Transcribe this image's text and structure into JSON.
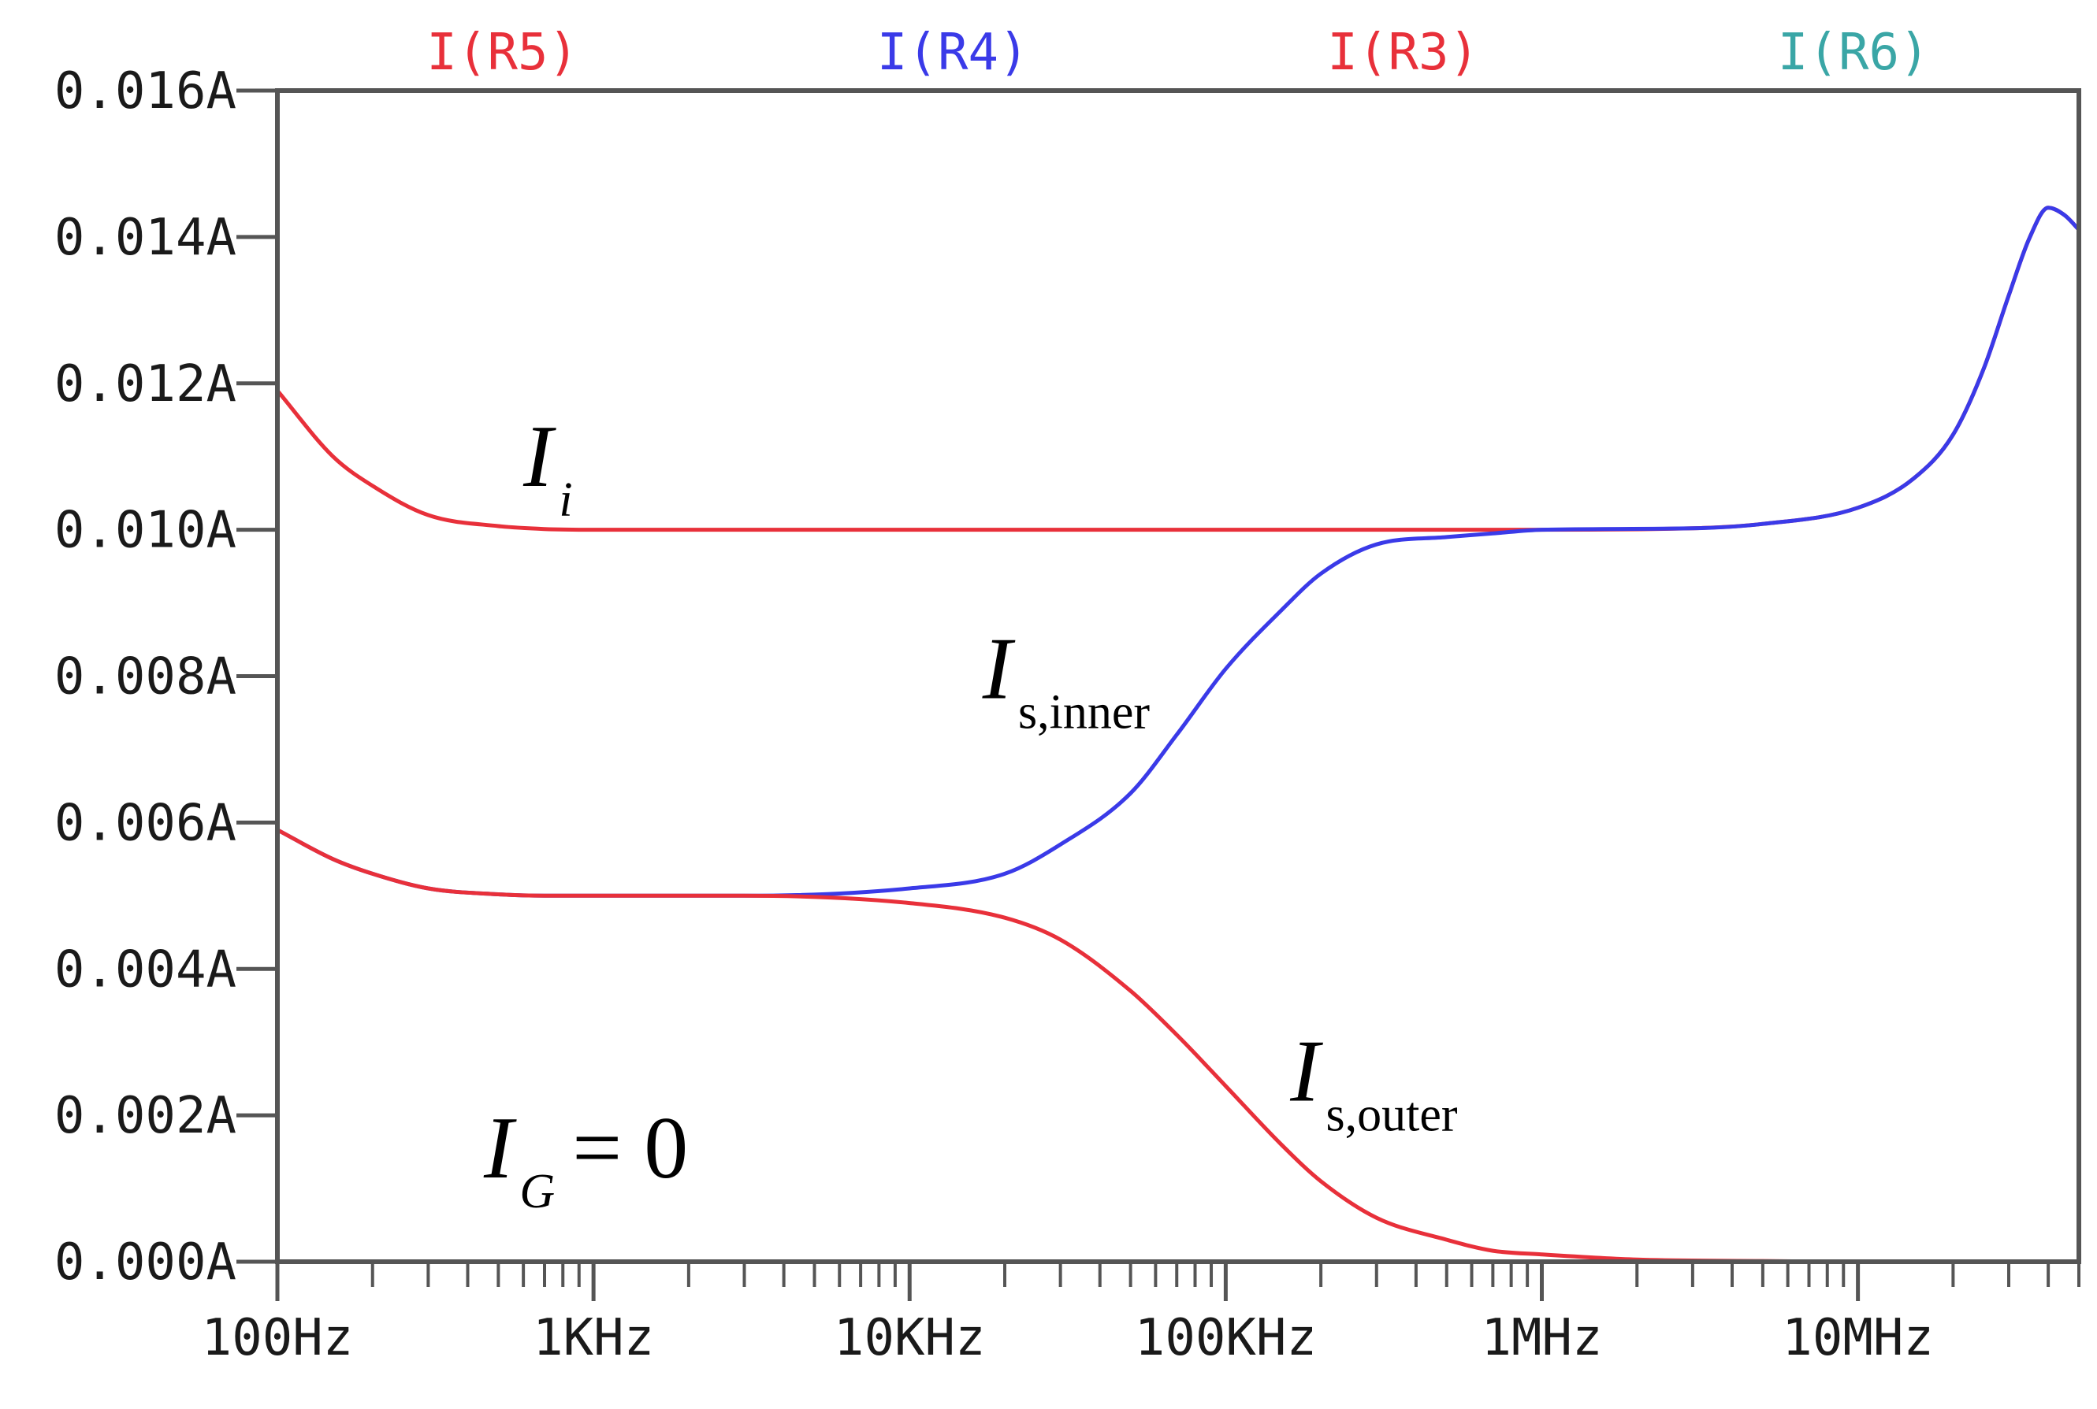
{
  "chart_data": {
    "type": "line",
    "xscale": "log",
    "xlim": [
      100,
      50000000
    ],
    "ylim": [
      0,
      0.016
    ],
    "grid": false,
    "x_ticks": [
      {
        "value": 100,
        "label": "100Hz"
      },
      {
        "value": 1000,
        "label": "1KHz"
      },
      {
        "value": 10000,
        "label": "10KHz"
      },
      {
        "value": 100000,
        "label": "100KHz"
      },
      {
        "value": 1000000,
        "label": "1MHz"
      },
      {
        "value": 10000000,
        "label": "10MHz"
      }
    ],
    "y_ticks": [
      {
        "value": 0.0,
        "label": "0.000A"
      },
      {
        "value": 0.002,
        "label": "0.002A"
      },
      {
        "value": 0.004,
        "label": "0.004A"
      },
      {
        "value": 0.006,
        "label": "0.006A"
      },
      {
        "value": 0.008,
        "label": "0.008A"
      },
      {
        "value": 0.01,
        "label": "0.010A"
      },
      {
        "value": 0.012,
        "label": "0.012A"
      },
      {
        "value": 0.014,
        "label": "0.014A"
      },
      {
        "value": 0.016,
        "label": "0.016A"
      }
    ],
    "legend_position": "top",
    "series": [
      {
        "name": "I(R5)",
        "color": "#e8303a",
        "x": [
          100,
          150,
          200,
          300,
          500,
          700,
          1000,
          3000,
          10000,
          100000,
          1000000,
          3000000,
          5000000,
          10000000,
          15000000,
          20000000,
          25000000,
          30000000,
          35000000,
          40000000,
          45000000,
          50000000
        ],
        "y": [
          0.0119,
          0.011,
          0.0106,
          0.0102,
          0.01005,
          0.01001,
          0.01,
          0.01,
          0.01,
          0.01,
          0.01,
          0.01002,
          0.01008,
          0.0103,
          0.0107,
          0.0113,
          0.0122,
          0.0132,
          0.014,
          0.0144,
          0.0143,
          0.0141
        ]
      },
      {
        "name": "I(R4)",
        "color": "#3a3ae8",
        "x": [
          100,
          150,
          200,
          300,
          500,
          700,
          1000,
          3000,
          10000,
          20000,
          30000,
          50000,
          70000,
          100000,
          150000,
          200000,
          300000,
          500000,
          700000,
          1000000,
          3000000,
          5000000,
          10000000,
          15000000,
          20000000,
          25000000,
          30000000,
          35000000,
          40000000,
          45000000,
          50000000
        ],
        "y": [
          0.0059,
          0.0055,
          0.0053,
          0.0051,
          0.00502,
          0.005,
          0.005,
          0.005,
          0.0051,
          0.0053,
          0.0057,
          0.0064,
          0.0072,
          0.0081,
          0.0089,
          0.0094,
          0.0098,
          0.0099,
          0.00995,
          0.01,
          0.01002,
          0.01008,
          0.0103,
          0.0107,
          0.0113,
          0.0122,
          0.0132,
          0.014,
          0.0144,
          0.0143,
          0.0141
        ]
      },
      {
        "name": "I(R3)",
        "color": "#e8303a",
        "x": [
          100,
          150,
          200,
          300,
          500,
          700,
          1000,
          3000,
          10000,
          20000,
          30000,
          50000,
          70000,
          100000,
          150000,
          200000,
          300000,
          500000,
          700000,
          1000000,
          2000000,
          5000000,
          10000000,
          20000000,
          50000000
        ],
        "y": [
          0.0059,
          0.0055,
          0.0053,
          0.0051,
          0.00502,
          0.005,
          0.005,
          0.005,
          0.0049,
          0.0047,
          0.0044,
          0.0037,
          0.0031,
          0.0024,
          0.0016,
          0.0011,
          0.0006,
          0.0003,
          0.00015,
          0.0001,
          3e-05,
          1e-05,
          0.0,
          0.0,
          0.0
        ]
      },
      {
        "name": "I(R6)",
        "color": "#3aa6a6",
        "x": [
          100,
          50000000
        ],
        "y": [
          0.0,
          0.0
        ]
      }
    ],
    "annotations": [
      {
        "main": "I",
        "sub": "i",
        "sub_italic": true,
        "x": 600,
        "y": 0.0106
      },
      {
        "main": "I",
        "sub": "s,inner",
        "sub_italic": false,
        "x": 17000,
        "y": 0.0077
      },
      {
        "main": "I",
        "sub": "s,outer",
        "sub_italic": false,
        "x": 160000,
        "y": 0.0022
      },
      {
        "main": "I",
        "sub": "G",
        "sub_italic": true,
        "suffix": "= 0",
        "x": 450,
        "y": 0.00115
      }
    ]
  }
}
